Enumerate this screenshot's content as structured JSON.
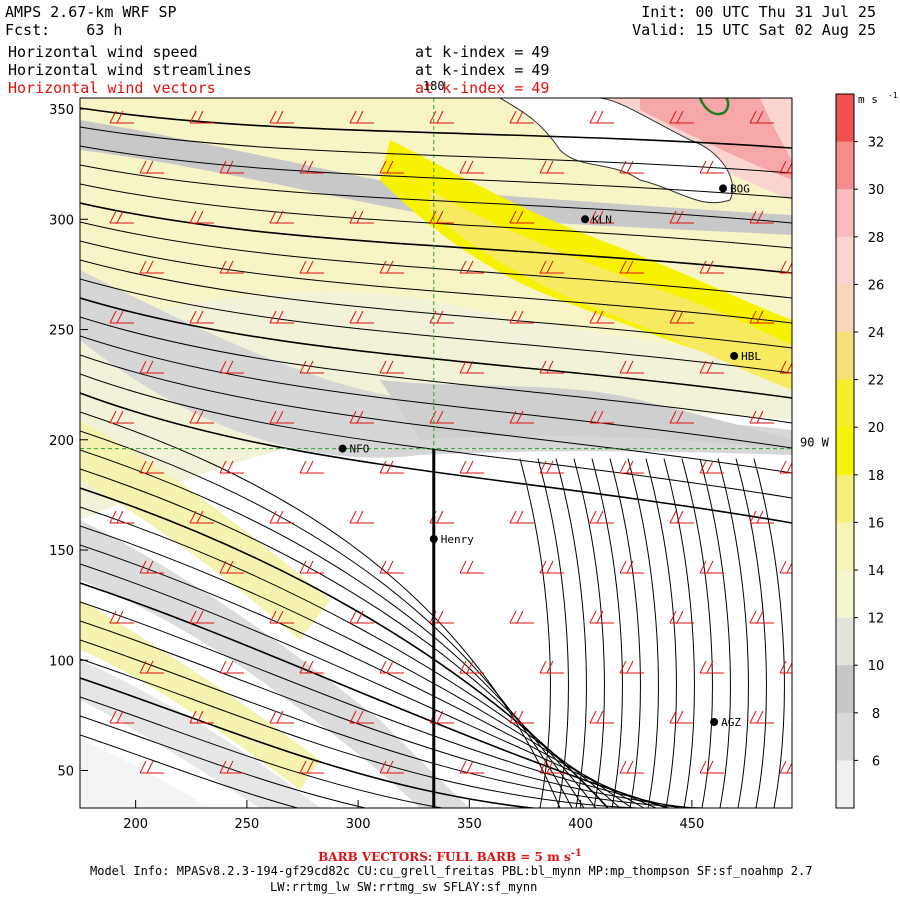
{
  "header": {
    "title": "AMPS 2.67-km WRF SP",
    "fcst_label": "Fcst:",
    "fcst_value": "63 h",
    "init_label": "Init:",
    "init_value": "00 UTC Thu 31 Jul 25",
    "valid_label": "Valid:",
    "valid_value": "15 UTC Sat 02 Aug 25"
  },
  "fields": [
    {
      "name": "Horizontal wind speed",
      "k_label": "at k-index =",
      "k_value": "49",
      "color": "#000000"
    },
    {
      "name": "Horizontal wind streamlines",
      "k_label": "at k-index =",
      "k_value": "49",
      "color": "#000000"
    },
    {
      "name": "Horizontal wind vectors",
      "k_label": "at k-index =",
      "k_value": "49",
      "color": "#e01010"
    }
  ],
  "map": {
    "x_ticks": [
      200,
      250,
      300,
      350,
      400,
      450
    ],
    "y_ticks": [
      50,
      100,
      150,
      200,
      250,
      300,
      350
    ],
    "x_range": [
      175,
      495
    ],
    "y_range": [
      33,
      355
    ],
    "meridian_label": "180",
    "parallel_label": "90 W",
    "meridian_x": 334,
    "parallel_y": 196,
    "stations": [
      {
        "name": "NFO",
        "x": 293,
        "y": 196
      },
      {
        "name": "Henry",
        "x": 334,
        "y": 155
      },
      {
        "name": "KLN",
        "x": 402,
        "y": 300
      },
      {
        "name": "BOG",
        "x": 464,
        "y": 314
      },
      {
        "name": "HBL",
        "x": 469,
        "y": 238
      },
      {
        "name": "AGZ",
        "x": 460,
        "y": 72
      }
    ],
    "colors": {
      "barbs": "#e01010",
      "streamlines": "#000000",
      "grid": "#2e9e2e",
      "coast": "#1e7e1e"
    }
  },
  "colorbar": {
    "units": "m s",
    "units_exp": "-1",
    "ticks": [
      "32",
      "30",
      "28",
      "26",
      "24",
      "22",
      "20",
      "18",
      "16",
      "14",
      "12",
      "10",
      "8",
      "6"
    ],
    "colors": [
      "#f05050",
      "#f68c8c",
      "#f9bcbc",
      "#fad5d0",
      "#f6d7b8",
      "#f7e07a",
      "#f4ee2b",
      "#f6f400",
      "#f5f07c",
      "#f8f4b8",
      "#f5f5d0",
      "#e3e3db",
      "#c7c7c7",
      "#d9d9d9",
      "#f0f0f0"
    ]
  },
  "footer": {
    "barb_note": "BARB VECTORS:  FULL BARB = 5 m s",
    "barb_exp": "-1",
    "model_info": "Model Info: MPASv8.2.3-194-gf29cd82c CU:cu_grell_freitas PBL:bl_mynn MP:mp_thompson SF:sf_noahmp 2.7",
    "model_info2": "LW:rrtmg_lw SW:rrtmg_sw SFLAY:sf_mynn"
  }
}
